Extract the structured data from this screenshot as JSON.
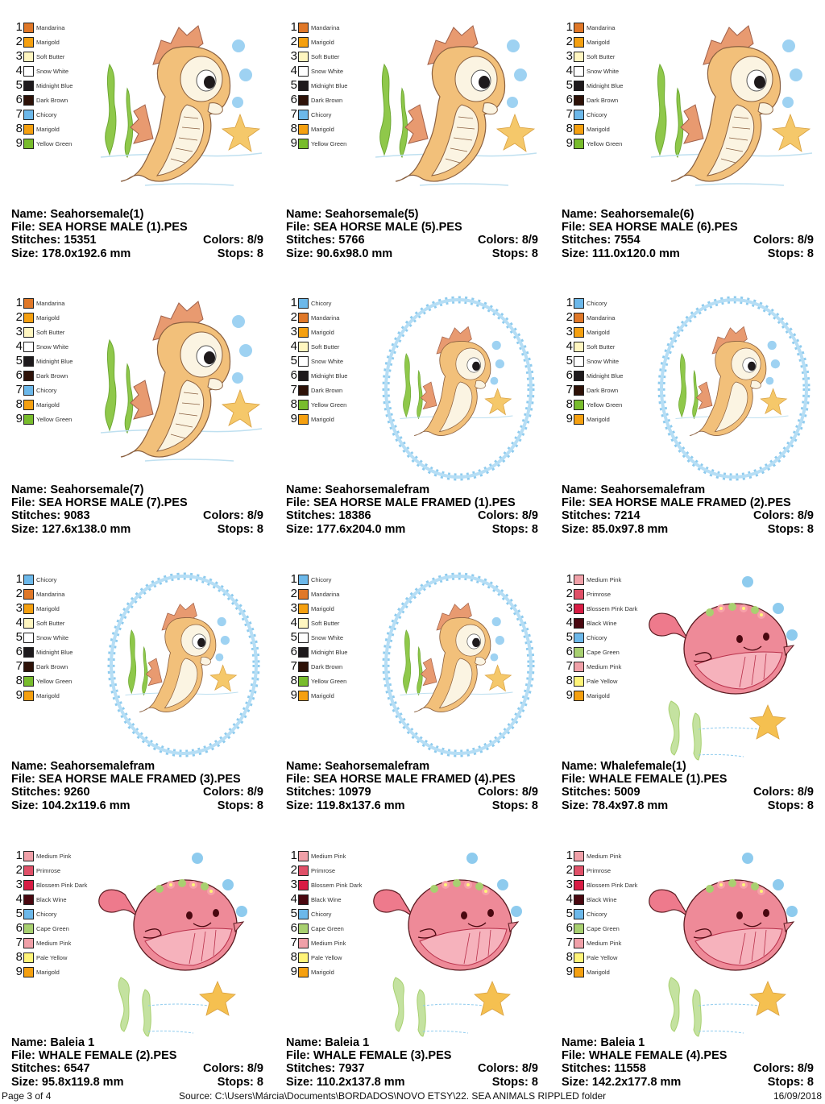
{
  "footer": {
    "page": "Page 3 of 4",
    "source": "Source: C:\\Users\\Márcia\\Documents\\BORDADOS\\NOVO ETSY\\22. SEA ANIMALS RIPPLED folder",
    "date": "16/09/2018"
  },
  "labels": {
    "name": "Name: ",
    "file": "File: ",
    "stitches": "Stitches: ",
    "colors": "Colors: ",
    "size": "Size: ",
    "stops": "Stops: "
  },
  "thread_colors": {
    "Mandarina": "#e07828",
    "Marigold": "#f5a010",
    "Soft Butter": "#fff6c0",
    "Snow White": "#ffffff",
    "Midnight Blue": "#1e1a1c",
    "Dark Brown": "#2e1208",
    "Chicory": "#6cb8ea",
    "Yellow Green": "#78bc2c",
    "Medium Pink": "#f0a0a8",
    "Primrose": "#e05068",
    "Blossem Pink Dark": "#d81c44",
    "Black Wine": "#4a0810",
    "Cape Green": "#a8d070",
    "Pale Yellow": "#fff478"
  },
  "designs": [
    {
      "type": "seahorse",
      "name": "Seahorsemale(1)",
      "file": "SEA HORSE MALE (1).PES",
      "stitches": "15351",
      "colors": "8/9",
      "size": "178.0x192.6 mm",
      "stops": "8",
      "legend": [
        {
          "n": "1",
          "name": "Mandarina",
          "hex": "#e07828"
        },
        {
          "n": "2",
          "name": "Marigold",
          "hex": "#f5a010"
        },
        {
          "n": "3",
          "name": "Soft Butter",
          "hex": "#fff6c0"
        },
        {
          "n": "4",
          "name": "Snow White",
          "hex": "#ffffff"
        },
        {
          "n": "5",
          "name": "Midnight Blue",
          "hex": "#1e1a1c"
        },
        {
          "n": "6",
          "name": "Dark Brown",
          "hex": "#2e1208"
        },
        {
          "n": "7",
          "name": "Chicory",
          "hex": "#6cb8ea"
        },
        {
          "n": "8",
          "name": "Marigold",
          "hex": "#f5a010"
        },
        {
          "n": "9",
          "name": "Yellow Green",
          "hex": "#78bc2c"
        }
      ]
    },
    {
      "type": "seahorse",
      "name": "Seahorsemale(5)",
      "file": "SEA HORSE MALE (5).PES",
      "stitches": "5766",
      "colors": "8/9",
      "size": "90.6x98.0 mm",
      "stops": "8",
      "legend": [
        {
          "n": "1",
          "name": "Mandarina",
          "hex": "#e07828"
        },
        {
          "n": "2",
          "name": "Marigold",
          "hex": "#f5a010"
        },
        {
          "n": "3",
          "name": "Soft Butter",
          "hex": "#fff6c0"
        },
        {
          "n": "4",
          "name": "Snow White",
          "hex": "#ffffff"
        },
        {
          "n": "5",
          "name": "Midnight Blue",
          "hex": "#1e1a1c"
        },
        {
          "n": "6",
          "name": "Dark Brown",
          "hex": "#2e1208"
        },
        {
          "n": "7",
          "name": "Chicory",
          "hex": "#6cb8ea"
        },
        {
          "n": "8",
          "name": "Marigold",
          "hex": "#f5a010"
        },
        {
          "n": "9",
          "name": "Yellow Green",
          "hex": "#78bc2c"
        }
      ]
    },
    {
      "type": "seahorse",
      "name": "Seahorsemale(6)",
      "file": "SEA HORSE MALE (6).PES",
      "stitches": "7554",
      "colors": "8/9",
      "size": "111.0x120.0 mm",
      "stops": "8",
      "legend": [
        {
          "n": "1",
          "name": "Mandarina",
          "hex": "#e07828"
        },
        {
          "n": "2",
          "name": "Marigold",
          "hex": "#f5a010"
        },
        {
          "n": "3",
          "name": "Soft Butter",
          "hex": "#fff6c0"
        },
        {
          "n": "4",
          "name": "Snow White",
          "hex": "#ffffff"
        },
        {
          "n": "5",
          "name": "Midnight Blue",
          "hex": "#1e1a1c"
        },
        {
          "n": "6",
          "name": "Dark Brown",
          "hex": "#2e1208"
        },
        {
          "n": "7",
          "name": "Chicory",
          "hex": "#6cb8ea"
        },
        {
          "n": "8",
          "name": "Marigold",
          "hex": "#f5a010"
        },
        {
          "n": "9",
          "name": "Yellow Green",
          "hex": "#78bc2c"
        }
      ]
    },
    {
      "type": "seahorse",
      "name": "Seahorsemale(7)",
      "file": "SEA HORSE MALE (7).PES",
      "stitches": "9083",
      "colors": "8/9",
      "size": "127.6x138.0 mm",
      "stops": "8",
      "legend": [
        {
          "n": "1",
          "name": "Mandarina",
          "hex": "#e07828"
        },
        {
          "n": "2",
          "name": "Marigold",
          "hex": "#f5a010"
        },
        {
          "n": "3",
          "name": "Soft Butter",
          "hex": "#fff6c0"
        },
        {
          "n": "4",
          "name": "Snow White",
          "hex": "#ffffff"
        },
        {
          "n": "5",
          "name": "Midnight Blue",
          "hex": "#1e1a1c"
        },
        {
          "n": "6",
          "name": "Dark Brown",
          "hex": "#2e1208"
        },
        {
          "n": "7",
          "name": "Chicory",
          "hex": "#6cb8ea"
        },
        {
          "n": "8",
          "name": "Marigold",
          "hex": "#f5a010"
        },
        {
          "n": "9",
          "name": "Yellow Green",
          "hex": "#78bc2c"
        }
      ]
    },
    {
      "type": "seahorse-framed",
      "name": "Seahorsemalefram",
      "file": "SEA HORSE MALE FRAMED (1).PES",
      "stitches": "18386",
      "colors": "8/9",
      "size": "177.6x204.0 mm",
      "stops": "8",
      "legend": [
        {
          "n": "1",
          "name": "Chicory",
          "hex": "#6cb8ea"
        },
        {
          "n": "2",
          "name": "Mandarina",
          "hex": "#e07828"
        },
        {
          "n": "3",
          "name": "Marigold",
          "hex": "#f5a010"
        },
        {
          "n": "4",
          "name": "Soft Butter",
          "hex": "#fff6c0"
        },
        {
          "n": "5",
          "name": "Snow White",
          "hex": "#ffffff"
        },
        {
          "n": "6",
          "name": "Midnight Blue",
          "hex": "#1e1a1c"
        },
        {
          "n": "7",
          "name": "Dark Brown",
          "hex": "#2e1208"
        },
        {
          "n": "8",
          "name": "Yellow Green",
          "hex": "#78bc2c"
        },
        {
          "n": "9",
          "name": "Marigold",
          "hex": "#f5a010"
        }
      ]
    },
    {
      "type": "seahorse-framed",
      "name": "Seahorsemalefram",
      "file": "SEA HORSE MALE FRAMED (2).PES",
      "stitches": "7214",
      "colors": "8/9",
      "size": "85.0x97.8 mm",
      "stops": "8",
      "legend": [
        {
          "n": "1",
          "name": "Chicory",
          "hex": "#6cb8ea"
        },
        {
          "n": "2",
          "name": "Mandarina",
          "hex": "#e07828"
        },
        {
          "n": "3",
          "name": "Marigold",
          "hex": "#f5a010"
        },
        {
          "n": "4",
          "name": "Soft Butter",
          "hex": "#fff6c0"
        },
        {
          "n": "5",
          "name": "Snow White",
          "hex": "#ffffff"
        },
        {
          "n": "6",
          "name": "Midnight Blue",
          "hex": "#1e1a1c"
        },
        {
          "n": "7",
          "name": "Dark Brown",
          "hex": "#2e1208"
        },
        {
          "n": "8",
          "name": "Yellow Green",
          "hex": "#78bc2c"
        },
        {
          "n": "9",
          "name": "Marigold",
          "hex": "#f5a010"
        }
      ]
    },
    {
      "type": "seahorse-framed",
      "name": "Seahorsemalefram",
      "file": "SEA HORSE MALE FRAMED (3).PES",
      "stitches": "9260",
      "colors": "8/9",
      "size": "104.2x119.6 mm",
      "stops": "8",
      "legend": [
        {
          "n": "1",
          "name": "Chicory",
          "hex": "#6cb8ea"
        },
        {
          "n": "2",
          "name": "Mandarina",
          "hex": "#e07828"
        },
        {
          "n": "3",
          "name": "Marigold",
          "hex": "#f5a010"
        },
        {
          "n": "4",
          "name": "Soft Butter",
          "hex": "#fff6c0"
        },
        {
          "n": "5",
          "name": "Snow White",
          "hex": "#ffffff"
        },
        {
          "n": "6",
          "name": "Midnight Blue",
          "hex": "#1e1a1c"
        },
        {
          "n": "7",
          "name": "Dark Brown",
          "hex": "#2e1208"
        },
        {
          "n": "8",
          "name": "Yellow Green",
          "hex": "#78bc2c"
        },
        {
          "n": "9",
          "name": "Marigold",
          "hex": "#f5a010"
        }
      ]
    },
    {
      "type": "seahorse-framed",
      "name": "Seahorsemalefram",
      "file": "SEA HORSE MALE FRAMED (4).PES",
      "stitches": "10979",
      "colors": "8/9",
      "size": "119.8x137.6 mm",
      "stops": "8",
      "legend": [
        {
          "n": "1",
          "name": "Chicory",
          "hex": "#6cb8ea"
        },
        {
          "n": "2",
          "name": "Mandarina",
          "hex": "#e07828"
        },
        {
          "n": "3",
          "name": "Marigold",
          "hex": "#f5a010"
        },
        {
          "n": "4",
          "name": "Soft Butter",
          "hex": "#fff6c0"
        },
        {
          "n": "5",
          "name": "Snow White",
          "hex": "#ffffff"
        },
        {
          "n": "6",
          "name": "Midnight Blue",
          "hex": "#1e1a1c"
        },
        {
          "n": "7",
          "name": "Dark Brown",
          "hex": "#2e1208"
        },
        {
          "n": "8",
          "name": "Yellow Green",
          "hex": "#78bc2c"
        },
        {
          "n": "9",
          "name": "Marigold",
          "hex": "#f5a010"
        }
      ]
    },
    {
      "type": "whale",
      "name": "Whalefemale(1)",
      "file": "WHALE FEMALE (1).PES",
      "stitches": "5009",
      "colors": "8/9",
      "size": "78.4x97.8 mm",
      "stops": "8",
      "legend": [
        {
          "n": "1",
          "name": "Medium Pink",
          "hex": "#f0a0a8"
        },
        {
          "n": "2",
          "name": "Primrose",
          "hex": "#e05068"
        },
        {
          "n": "3",
          "name": "Blossem Pink Dark",
          "hex": "#d81c44"
        },
        {
          "n": "4",
          "name": "Black Wine",
          "hex": "#4a0810"
        },
        {
          "n": "5",
          "name": "Chicory",
          "hex": "#6cb8ea"
        },
        {
          "n": "6",
          "name": "Cape Green",
          "hex": "#a8d070"
        },
        {
          "n": "7",
          "name": "Medium Pink",
          "hex": "#f0a0a8"
        },
        {
          "n": "8",
          "name": "Pale Yellow",
          "hex": "#fff478"
        },
        {
          "n": "9",
          "name": "Marigold",
          "hex": "#f5a010"
        }
      ]
    },
    {
      "type": "whale",
      "name": "Baleia 1",
      "file": "WHALE FEMALE (2).PES",
      "stitches": "6547",
      "colors": "8/9",
      "size": "95.8x119.8 mm",
      "stops": "8",
      "legend": [
        {
          "n": "1",
          "name": "Medium Pink",
          "hex": "#f0a0a8"
        },
        {
          "n": "2",
          "name": "Primrose",
          "hex": "#e05068"
        },
        {
          "n": "3",
          "name": "Blossem Pink Dark",
          "hex": "#d81c44"
        },
        {
          "n": "4",
          "name": "Black Wine",
          "hex": "#4a0810"
        },
        {
          "n": "5",
          "name": "Chicory",
          "hex": "#6cb8ea"
        },
        {
          "n": "6",
          "name": "Cape Green",
          "hex": "#a8d070"
        },
        {
          "n": "7",
          "name": "Medium Pink",
          "hex": "#f0a0a8"
        },
        {
          "n": "8",
          "name": "Pale Yellow",
          "hex": "#fff478"
        },
        {
          "n": "9",
          "name": "Marigold",
          "hex": "#f5a010"
        }
      ]
    },
    {
      "type": "whale",
      "name": "Baleia 1",
      "file": "WHALE FEMALE (3).PES",
      "stitches": "7937",
      "colors": "8/9",
      "size": "110.2x137.8 mm",
      "stops": "8",
      "legend": [
        {
          "n": "1",
          "name": "Medium Pink",
          "hex": "#f0a0a8"
        },
        {
          "n": "2",
          "name": "Primrose",
          "hex": "#e05068"
        },
        {
          "n": "3",
          "name": "Blossem Pink Dark",
          "hex": "#d81c44"
        },
        {
          "n": "4",
          "name": "Black Wine",
          "hex": "#4a0810"
        },
        {
          "n": "5",
          "name": "Chicory",
          "hex": "#6cb8ea"
        },
        {
          "n": "6",
          "name": "Cape Green",
          "hex": "#a8d070"
        },
        {
          "n": "7",
          "name": "Medium Pink",
          "hex": "#f0a0a8"
        },
        {
          "n": "8",
          "name": "Pale Yellow",
          "hex": "#fff478"
        },
        {
          "n": "9",
          "name": "Marigold",
          "hex": "#f5a010"
        }
      ]
    },
    {
      "type": "whale",
      "name": "Baleia 1",
      "file": "WHALE FEMALE (4).PES",
      "stitches": "11558",
      "colors": "8/9",
      "size": "142.2x177.8 mm",
      "stops": "8",
      "legend": [
        {
          "n": "1",
          "name": "Medium Pink",
          "hex": "#f0a0a8"
        },
        {
          "n": "2",
          "name": "Primrose",
          "hex": "#e05068"
        },
        {
          "n": "3",
          "name": "Blossem Pink Dark",
          "hex": "#d81c44"
        },
        {
          "n": "4",
          "name": "Black Wine",
          "hex": "#4a0810"
        },
        {
          "n": "5",
          "name": "Chicory",
          "hex": "#6cb8ea"
        },
        {
          "n": "6",
          "name": "Cape Green",
          "hex": "#a8d070"
        },
        {
          "n": "7",
          "name": "Medium Pink",
          "hex": "#f0a0a8"
        },
        {
          "n": "8",
          "name": "Pale Yellow",
          "hex": "#fff478"
        },
        {
          "n": "9",
          "name": "Marigold",
          "hex": "#f5a010"
        }
      ]
    }
  ]
}
